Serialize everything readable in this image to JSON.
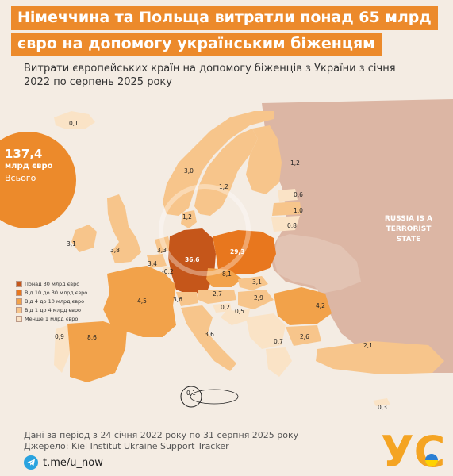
{
  "title": {
    "line1": "Німеччина та Польща витратли понад 65 млрд",
    "line2": "євро на допомогу українським біженцям"
  },
  "subtitle": "Витрати європейських країн на допомогу біженців з України з січня 2022 по серпень 2025 року",
  "total": {
    "value": "137,4",
    "unit": "млрд євро",
    "label": "Всього"
  },
  "legend": [
    {
      "label": "Понад 30 млрд євро",
      "color": "#c5561a"
    },
    {
      "label": "Від 10 до 30 млрд євро",
      "color": "#e8771e"
    },
    {
      "label": "Від 4 до 10 млрд євро",
      "color": "#f2a24a"
    },
    {
      "label": "Від 1 до 4 млрд євро",
      "color": "#f7c58b"
    },
    {
      "label": "Менше 1 млрд євро",
      "color": "#fae3c6"
    }
  ],
  "countries": {
    "iceland": "0,1",
    "norway": "3,0",
    "sweden": "1,2",
    "finland": "1,2",
    "denmark": "1,2",
    "estonia": "0,6",
    "latvia": "1,0",
    "lithuania": "0,8",
    "ireland": "3,1",
    "uk": "3,8",
    "netherlands": "3,3",
    "belgium": "3,4",
    "luxembourg": "-0,2",
    "germany": "36,6",
    "poland": "29,3",
    "czechia": "8,1",
    "slovakia": "3,1",
    "france": "4,5",
    "switzerland": "3,6",
    "austria": "2,7",
    "hungary": "2,9",
    "slovenia": "0,2",
    "croatia": "0,5",
    "romania": "4,2",
    "bulgaria": "2,6",
    "italy": "3,6",
    "greece": "0,7",
    "turkey": "2,1",
    "cyprus": "0,3",
    "portugal": "0,9",
    "spain": "8,6",
    "malta": "0,1"
  },
  "russia_note": "RUSSIA IS A TERRORIST STATE",
  "footer": {
    "line1": "Дані за період з 24 січня 2022 року по 31 серпня 2025 року",
    "line2": "Джерело: Kiel Institut Ukraine Support Tracker"
  },
  "telegram": "t.me/u_now",
  "logo": "УС"
}
